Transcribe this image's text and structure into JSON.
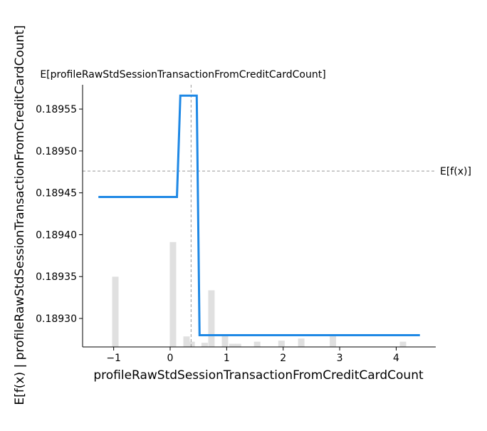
{
  "chart_data": {
    "type": "line",
    "title": "",
    "xlabel": "profileRawStdSessionTransactionFromCreditCardCount",
    "ylabel": "E[f(x) | profileRawStdSessionTransactionFromCreditCardCount]",
    "xlim": [
      -1.55,
      4.7
    ],
    "ylim": [
      0.189266,
      0.189579
    ],
    "x_ticks": [
      -1,
      0,
      1,
      2,
      3,
      4
    ],
    "x_tick_labels": [
      "−1",
      "0",
      "1",
      "2",
      "3",
      "4"
    ],
    "y_ticks": [
      0.1893,
      0.18935,
      0.1894,
      0.18945,
      0.1895,
      0.18955
    ],
    "y_tick_labels": [
      "0.18930",
      "0.18935",
      "0.18940",
      "0.18945",
      "0.18950",
      "0.18955"
    ],
    "series": [
      {
        "color": "#1e88e5",
        "x": [
          -1.27,
          0.12,
          0.18,
          0.47,
          0.52,
          4.42
        ],
        "y": [
          0.189445,
          0.189445,
          0.189566,
          0.189566,
          0.18928,
          0.18928
        ]
      }
    ],
    "expected_value_line": {
      "y": 0.189476,
      "label": "E[f(x)]"
    },
    "expected_feature_line": {
      "x": 0.37,
      "label": "E[profileRawStdSessionTransactionFromCreditCardCount]"
    },
    "histogram": {
      "color": "#e0e0e0",
      "max_fraction": 0.4,
      "bins": [
        {
          "x": -0.97,
          "h": 0.67
        },
        {
          "x": 0.05,
          "h": 1.0
        },
        {
          "x": 0.29,
          "h": 0.1
        },
        {
          "x": 0.38,
          "h": 0.05
        },
        {
          "x": 0.61,
          "h": 0.04
        },
        {
          "x": 0.73,
          "h": 0.54
        },
        {
          "x": 0.97,
          "h": 0.12
        },
        {
          "x": 1.1,
          "h": 0.03
        },
        {
          "x": 1.2,
          "h": 0.03
        },
        {
          "x": 1.54,
          "h": 0.05
        },
        {
          "x": 1.97,
          "h": 0.06
        },
        {
          "x": 2.32,
          "h": 0.08
        },
        {
          "x": 2.88,
          "h": 0.12
        },
        {
          "x": 4.12,
          "h": 0.05
        }
      ]
    }
  }
}
